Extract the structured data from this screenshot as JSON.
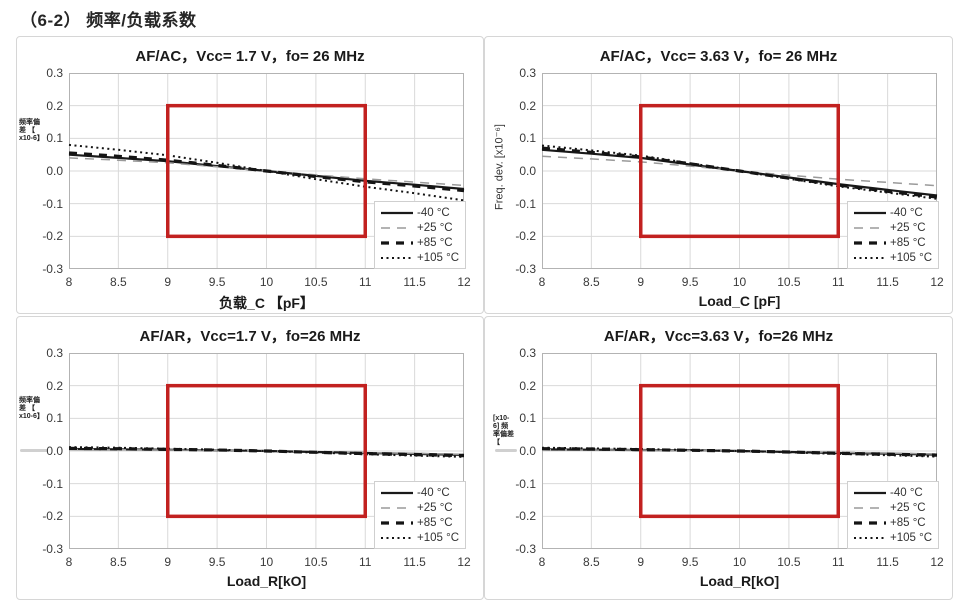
{
  "page": {
    "title": "（6-2） 频率/负载系数"
  },
  "legend_note": "same four temperature series on all charts",
  "chart_data": [
    {
      "type": "line",
      "title": "AF/AC，Vcc= 1.7 V，fo= 26 MHz",
      "xlabel": "负载_C 【pF】",
      "ylabel": "频率偏差【x10-6】",
      "ylabel_lines": [
        "频率偏",
        "差 【",
        "x10-6】"
      ],
      "ylabel_style": "tiny-block",
      "xlim": [
        8,
        12
      ],
      "ylim": [
        -0.3,
        0.3
      ],
      "grid": true,
      "legend_position": "bottom-right",
      "x_ticks": [
        8,
        8.5,
        9,
        9.5,
        10,
        10.5,
        11,
        11.5,
        12
      ],
      "x_tick_labels": [
        "8",
        "8.5",
        "9",
        "9.5",
        "10",
        "10.5",
        "11",
        "11.5",
        "12"
      ],
      "y_ticks": [
        0.3,
        0.2,
        0.1,
        0.0,
        -0.1,
        -0.2,
        -0.3
      ],
      "y_tick_labels": [
        "0.3",
        "0.2",
        "0.1",
        "0.0",
        "-0.1",
        "-0.2",
        "-0.3"
      ],
      "x": [
        8,
        8.5,
        9,
        9.5,
        10,
        10.5,
        11,
        11.5,
        12
      ],
      "series": [
        {
          "name": "-40 °C",
          "style": "solid",
          "color": "#1a1a1a",
          "values": [
            0.05,
            0.04,
            0.03,
            0.015,
            0.0,
            -0.015,
            -0.03,
            -0.042,
            -0.055
          ]
        },
        {
          "name": "+25 °C",
          "style": "dash",
          "color": "#9a9a9a",
          "values": [
            0.04,
            0.033,
            0.025,
            0.013,
            0.0,
            -0.012,
            -0.024,
            -0.034,
            -0.044
          ]
        },
        {
          "name": "+85 °C",
          "style": "bold-dash",
          "color": "#141414",
          "values": [
            0.055,
            0.045,
            0.033,
            0.017,
            0.0,
            -0.017,
            -0.033,
            -0.046,
            -0.06
          ]
        },
        {
          "name": "+105 °C",
          "style": "dot",
          "color": "#141414",
          "values": [
            0.08,
            0.065,
            0.048,
            0.025,
            0.0,
            -0.025,
            -0.048,
            -0.068,
            -0.09
          ]
        }
      ],
      "highlight_box": {
        "x0": 9,
        "x1": 11,
        "y0": -0.2,
        "y1": 0.2,
        "color": "#c22120"
      }
    },
    {
      "type": "line",
      "title": "AF/AC，Vcc= 3.63 V，fo= 26 MHz",
      "xlabel": "Load_C [pF]",
      "ylabel": "Freq. dev. [x10⁻⁶]",
      "ylabel_lines": [
        "Freq. dev. [x10⁻⁶]"
      ],
      "ylabel_style": "rotated",
      "xlim": [
        8,
        12
      ],
      "ylim": [
        -0.3,
        0.3
      ],
      "grid": true,
      "legend_position": "bottom-right",
      "x_ticks": [
        8,
        8.5,
        9,
        9.5,
        10,
        10.5,
        11,
        11.5,
        12
      ],
      "x_tick_labels": [
        "8",
        "8.5",
        "9",
        "9.5",
        "10",
        "10.5",
        "11",
        "11.5",
        "12"
      ],
      "y_ticks": [
        0.3,
        0.2,
        0.1,
        0.0,
        -0.1,
        -0.2,
        -0.3
      ],
      "y_tick_labels": [
        "0.3",
        "0.2",
        "0.1",
        "0.0",
        "-0.1",
        "-0.2",
        "-0.3"
      ],
      "x": [
        8,
        8.5,
        9,
        9.5,
        10,
        10.5,
        11,
        11.5,
        12
      ],
      "series": [
        {
          "name": "-40 °C",
          "style": "solid",
          "color": "#1a1a1a",
          "values": [
            0.065,
            0.053,
            0.04,
            0.02,
            0.0,
            -0.02,
            -0.04,
            -0.058,
            -0.075
          ]
        },
        {
          "name": "+25 °C",
          "style": "dash",
          "color": "#9a9a9a",
          "values": [
            0.045,
            0.037,
            0.028,
            0.015,
            0.0,
            -0.013,
            -0.025,
            -0.035,
            -0.045
          ]
        },
        {
          "name": "+85 °C",
          "style": "bold-dash",
          "color": "#141414",
          "values": [
            0.07,
            0.057,
            0.043,
            0.022,
            0.0,
            -0.022,
            -0.043,
            -0.062,
            -0.08
          ]
        },
        {
          "name": "+105 °C",
          "style": "dot",
          "color": "#141414",
          "values": [
            0.078,
            0.063,
            0.047,
            0.024,
            0.0,
            -0.024,
            -0.047,
            -0.066,
            -0.085
          ]
        }
      ],
      "highlight_box": {
        "x0": 9,
        "x1": 11,
        "y0": -0.2,
        "y1": 0.2,
        "color": "#c22120"
      }
    },
    {
      "type": "line",
      "title": "AF/AR，Vcc=1.7 V，fo=26 MHz",
      "xlabel": "Load_R[kO]",
      "ylabel": "频率偏差【x10-6】",
      "ylabel_lines": [
        "频率偏",
        "差 【",
        "x10-6】"
      ],
      "ylabel_style": "tiny-block",
      "xlim": [
        8,
        12
      ],
      "ylim": [
        -0.3,
        0.3
      ],
      "grid": true,
      "legend_position": "bottom-right",
      "x_ticks": [
        8,
        8.5,
        9,
        9.5,
        10,
        10.5,
        11,
        11.5,
        12
      ],
      "x_tick_labels": [
        "8",
        "8.5",
        "9",
        "9.5",
        "10",
        "10.5",
        "11",
        "11.5",
        "12"
      ],
      "y_ticks": [
        0.3,
        0.2,
        0.1,
        0.0,
        -0.1,
        -0.2,
        -0.3
      ],
      "y_tick_labels": [
        "0.3",
        "0.2",
        "0.1",
        "0.0",
        "-0.1",
        "-0.2",
        "-0.3"
      ],
      "x": [
        8,
        8.5,
        9,
        9.5,
        10,
        10.5,
        11,
        11.5,
        12
      ],
      "series": [
        {
          "name": "-40 °C",
          "style": "solid",
          "color": "#1a1a1a",
          "values": [
            0.006,
            0.005,
            0.004,
            0.002,
            0.0,
            -0.003,
            -0.006,
            -0.009,
            -0.012
          ]
        },
        {
          "name": "+25 °C",
          "style": "dash",
          "color": "#9a9a9a",
          "values": [
            0.005,
            0.004,
            0.003,
            0.002,
            0.0,
            -0.002,
            -0.005,
            -0.007,
            -0.01
          ]
        },
        {
          "name": "+85 °C",
          "style": "bold-dash",
          "color": "#141414",
          "values": [
            0.008,
            0.007,
            0.005,
            0.003,
            0.0,
            -0.004,
            -0.008,
            -0.011,
            -0.014
          ]
        },
        {
          "name": "+105 °C",
          "style": "dot",
          "color": "#141414",
          "values": [
            0.012,
            0.01,
            0.007,
            0.004,
            0.0,
            -0.005,
            -0.01,
            -0.014,
            -0.018
          ]
        }
      ],
      "highlight_box": {
        "x0": 9,
        "x1": 11,
        "y0": -0.2,
        "y1": 0.2,
        "color": "#c22120"
      }
    },
    {
      "type": "line",
      "title": "AF/AR，Vcc=3.63 V，fo=26 MHz",
      "xlabel": "Load_R[kO]",
      "ylabel": "[x10-6] 频率偏差【",
      "ylabel_lines": [
        "[x10-",
        "6] 频",
        "率偏差",
        "【"
      ],
      "ylabel_style": "tiny-block",
      "xlim": [
        8,
        12
      ],
      "ylim": [
        -0.3,
        0.3
      ],
      "grid": true,
      "legend_position": "bottom-right",
      "x_ticks": [
        8,
        8.5,
        9,
        9.5,
        10,
        10.5,
        11,
        11.5,
        12
      ],
      "x_tick_labels": [
        "8",
        "8.5",
        "9",
        "9.5",
        "10",
        "10.5",
        "11",
        "11.5",
        "12"
      ],
      "y_ticks": [
        0.3,
        0.2,
        0.1,
        0.0,
        -0.1,
        -0.2,
        -0.3
      ],
      "y_tick_labels": [
        "0.3",
        "0.2",
        "0.1",
        "0.0",
        "-0.1",
        "-0.2",
        "-0.3"
      ],
      "x": [
        8,
        8.5,
        9,
        9.5,
        10,
        10.5,
        11,
        11.5,
        12
      ],
      "series": [
        {
          "name": "-40 °C",
          "style": "solid",
          "color": "#1a1a1a",
          "values": [
            0.005,
            0.004,
            0.003,
            0.002,
            0.0,
            -0.003,
            -0.006,
            -0.008,
            -0.011
          ]
        },
        {
          "name": "+25 °C",
          "style": "dash",
          "color": "#9a9a9a",
          "values": [
            0.004,
            0.003,
            0.003,
            0.001,
            0.0,
            -0.002,
            -0.004,
            -0.006,
            -0.009
          ]
        },
        {
          "name": "+85 °C",
          "style": "bold-dash",
          "color": "#141414",
          "values": [
            0.007,
            0.006,
            0.004,
            0.002,
            0.0,
            -0.003,
            -0.007,
            -0.01,
            -0.013
          ]
        },
        {
          "name": "+105 °C",
          "style": "dot",
          "color": "#141414",
          "values": [
            0.01,
            0.008,
            0.006,
            0.003,
            0.0,
            -0.004,
            -0.009,
            -0.013,
            -0.017
          ]
        }
      ],
      "highlight_box": {
        "x0": 9,
        "x1": 11,
        "y0": -0.2,
        "y1": 0.2,
        "color": "#c22120"
      }
    }
  ]
}
